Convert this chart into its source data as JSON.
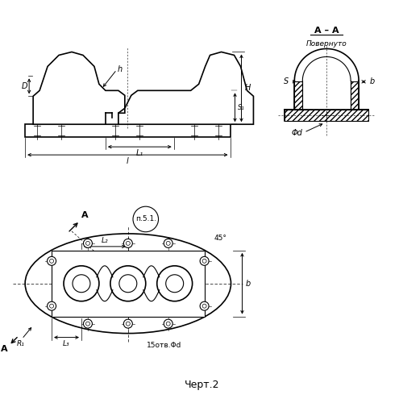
{
  "bg_color": "#ffffff",
  "line_color": "#000000",
  "title_text": "Черт.2",
  "section_aa_label": "А – А",
  "section_sublabel": "Повернуто",
  "dim_labels": {
    "h": "h",
    "D": "D",
    "H": "H",
    "S1": "S₁",
    "L1": "L₁",
    "L": "l",
    "S": "S",
    "b": "b",
    "phi_d": "Φd",
    "R1": "R₁",
    "L3": "L₃",
    "L2": "L₂",
    "holes": "15отв.Φd",
    "n51": "п.5.1.",
    "angle": "45°",
    "A_label": "А"
  }
}
